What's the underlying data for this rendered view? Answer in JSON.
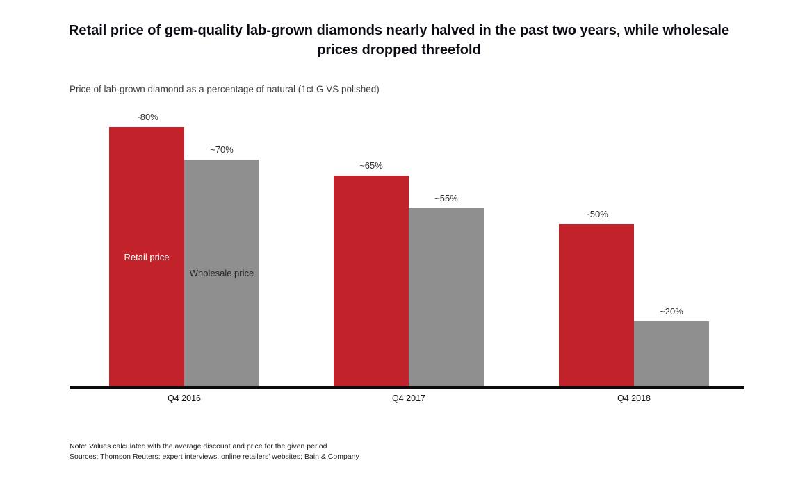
{
  "title": "Retail price of gem-quality lab-grown diamonds nearly halved in the past two years, while wholesale prices dropped threefold",
  "subtitle": "Price of lab-grown diamond as a percentage of natural (1ct G VS polished)",
  "chart_data": {
    "type": "bar",
    "title": "Price of lab-grown diamond as a percentage of natural (1ct G VS polished)",
    "categories": [
      "Q4 2016",
      "Q4 2017",
      "Q4 2018"
    ],
    "series": [
      {
        "name": "Retail price",
        "values": [
          80,
          65,
          50
        ],
        "value_labels": [
          "~80%",
          "~65%",
          "~50%"
        ],
        "color": "#c2222a",
        "label_text_color": "light"
      },
      {
        "name": "Wholesale price",
        "values": [
          70,
          55,
          20
        ],
        "value_labels": [
          "~70%",
          "~55%",
          "~20%"
        ],
        "color": "#8f8f8f",
        "label_text_color": "dark"
      }
    ],
    "xlabel": "",
    "ylabel": "",
    "ylim": [
      0,
      87
    ],
    "grid": false,
    "legend_position": "labels inside first group of bars",
    "value_prefix": "~",
    "value_suffix": "%"
  },
  "footer": {
    "note": "Note: Values calculated with the average discount and price for the given period",
    "sources": "Sources: Thomson Reuters; expert interviews; online retailers' websites; Bain & Company"
  },
  "colors": {
    "retail_bar": "#c2222a",
    "wholesale_bar": "#8f8f8f",
    "axis_line": "#0a0a0a",
    "title_text": "#0b0b14"
  }
}
